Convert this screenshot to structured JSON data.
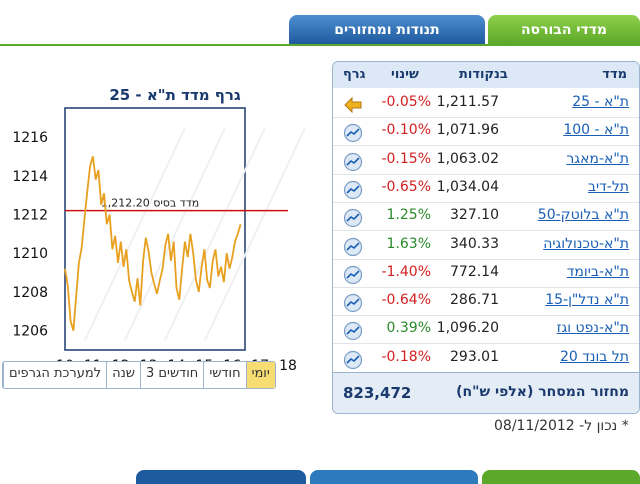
{
  "tabs": [
    {
      "label": "מדדי הבורסה",
      "active": true
    },
    {
      "label": "תנודות ומחזורים",
      "active": false
    }
  ],
  "table": {
    "headers": {
      "name": "מדד",
      "value": "בנקודות",
      "change": "שינוי",
      "graph": "גרף"
    },
    "rows": [
      {
        "name": "ת\"א - 25",
        "value": "1,211.57",
        "change": "-0.05%",
        "sign": "neg",
        "icon": "arrow-left-icon"
      },
      {
        "name": "ת\"א - 100",
        "value": "1,071.96",
        "change": "-0.10%",
        "sign": "neg",
        "icon": "chart-icon"
      },
      {
        "name": "ת\"א-מאגר",
        "value": "1,063.02",
        "change": "-0.15%",
        "sign": "neg",
        "icon": "chart-icon"
      },
      {
        "name": "תל-דיב",
        "value": "1,034.04",
        "change": "-0.65%",
        "sign": "neg",
        "icon": "chart-icon"
      },
      {
        "name": "ת\"א בלוטק-50",
        "value": "327.10",
        "change": "1.25%",
        "sign": "pos",
        "icon": "chart-icon"
      },
      {
        "name": "ת\"א-טכנולוגיה",
        "value": "340.33",
        "change": "1.63%",
        "sign": "pos",
        "icon": "chart-icon"
      },
      {
        "name": "ת\"א-ביומד",
        "value": "772.14",
        "change": "-1.40%",
        "sign": "neg",
        "icon": "chart-icon"
      },
      {
        "name": "ת\"א נדל\"ן-15",
        "value": "286.71",
        "change": "-0.64%",
        "sign": "neg",
        "icon": "chart-icon"
      },
      {
        "name": "ת\"א-נפט וגז",
        "value": "1,096.20",
        "change": "0.39%",
        "sign": "pos",
        "icon": "chart-icon"
      },
      {
        "name": "תל בונד 20",
        "value": "293.01",
        "change": "-0.18%",
        "sign": "neg",
        "icon": "chart-icon"
      }
    ],
    "footer": {
      "label": "מחזור המסחר (אלפי ש\"ח)",
      "value": "823,472"
    }
  },
  "chart_title": "גרף מדד ת\"א - 25",
  "periods": [
    {
      "label": "יומי",
      "active": true
    },
    {
      "label": "חודשי",
      "active": false
    },
    {
      "label": "3 חודשים",
      "active": false
    },
    {
      "label": "שנה",
      "active": false
    },
    {
      "label": "למערכת הגרפים",
      "active": false
    }
  ],
  "date_text": "* נכון ל- 08/11/2012",
  "colors": {
    "line": "#e8a020",
    "base": "#cc1010",
    "accent_green": "#5ca82a",
    "accent_blue": "#1e5a9e"
  },
  "chart_data": {
    "type": "line",
    "title": "",
    "xlabel": "",
    "ylabel": "",
    "x_ticks": [
      "10",
      "11",
      "12",
      "13",
      "14",
      "15",
      "16",
      "17",
      "18"
    ],
    "y_ticks": [
      1206,
      1208,
      1210,
      1212,
      1214,
      1216
    ],
    "ylim": [
      1205,
      1217.5
    ],
    "xlim": [
      10,
      18
    ],
    "baseline": {
      "label": "מדד בסיס 1,212.20",
      "value": 1212.2
    },
    "series": [
      {
        "x": [
          10,
          10.1,
          10.2,
          10.3,
          10.4,
          10.5,
          10.6,
          10.7,
          10.8,
          10.9,
          11,
          11.1,
          11.2,
          11.3,
          11.4,
          11.5,
          11.6,
          11.7,
          11.8,
          11.9,
          12,
          12.1,
          12.2,
          12.3,
          12.4,
          12.5,
          12.6,
          12.7,
          12.8,
          12.9,
          13,
          13.1,
          13.2,
          13.3,
          13.4,
          13.5,
          13.6,
          13.7,
          13.8,
          13.9,
          14,
          14.1,
          14.2,
          14.3,
          14.4,
          14.5,
          14.6,
          14.7,
          14.8,
          14.9,
          15,
          15.1,
          15.2,
          15.3,
          15.4,
          15.5,
          15.6,
          15.7,
          15.8,
          15.9,
          16,
          16.1,
          16.2,
          16.3
        ],
        "values": [
          1209.2,
          1208.3,
          1206.5,
          1206.0,
          1207.8,
          1209.5,
          1210.3,
          1211.8,
          1213.2,
          1214.5,
          1215.0,
          1213.8,
          1214.3,
          1212.5,
          1213.1,
          1211.5,
          1212.0,
          1210.2,
          1210.9,
          1209.5,
          1210.6,
          1209.3,
          1210.2,
          1208.6,
          1208.0,
          1207.5,
          1208.7,
          1207.3,
          1209.6,
          1210.8,
          1210.1,
          1209.0,
          1208.4,
          1207.9,
          1208.6,
          1209.2,
          1210.4,
          1211.0,
          1209.6,
          1210.6,
          1208.2,
          1207.6,
          1209.2,
          1210.6,
          1209.8,
          1211.0,
          1210.0,
          1208.6,
          1208.0,
          1209.3,
          1210.2,
          1208.6,
          1208.2,
          1209.6,
          1210.2,
          1208.8,
          1209.3,
          1208.5,
          1210.0,
          1209.2,
          1209.8,
          1210.6,
          1211.0,
          1211.5
        ]
      }
    ]
  }
}
